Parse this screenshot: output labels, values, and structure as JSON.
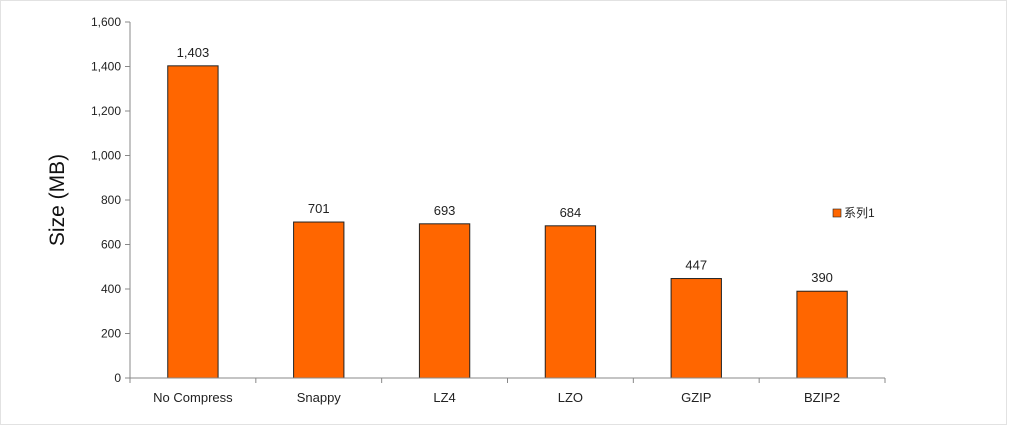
{
  "chart_data": {
    "type": "bar",
    "categories": [
      "No Compress",
      "Snappy",
      "LZ4",
      "LZO",
      "GZIP",
      "BZIP2"
    ],
    "series": [
      {
        "name": "系列1",
        "values": [
          1403,
          701,
          693,
          684,
          447,
          390
        ]
      }
    ],
    "data_labels": [
      "1,403",
      "701",
      "693",
      "684",
      "447",
      "390"
    ],
    "title": "",
    "xlabel": "",
    "ylabel": "Size (MB)",
    "ylim": [
      0,
      1600
    ],
    "yticks": [
      0,
      200,
      400,
      600,
      800,
      1000,
      1200,
      1400,
      1600
    ],
    "ytick_labels": [
      "0",
      "200",
      "400",
      "600",
      "800",
      "1,000",
      "1,200",
      "1,400",
      "1,600"
    ],
    "grid": false,
    "legend_position": "right",
    "colors": {
      "bar": "#ff6600",
      "bar_stroke": "#222222",
      "axis": "#888888"
    }
  }
}
